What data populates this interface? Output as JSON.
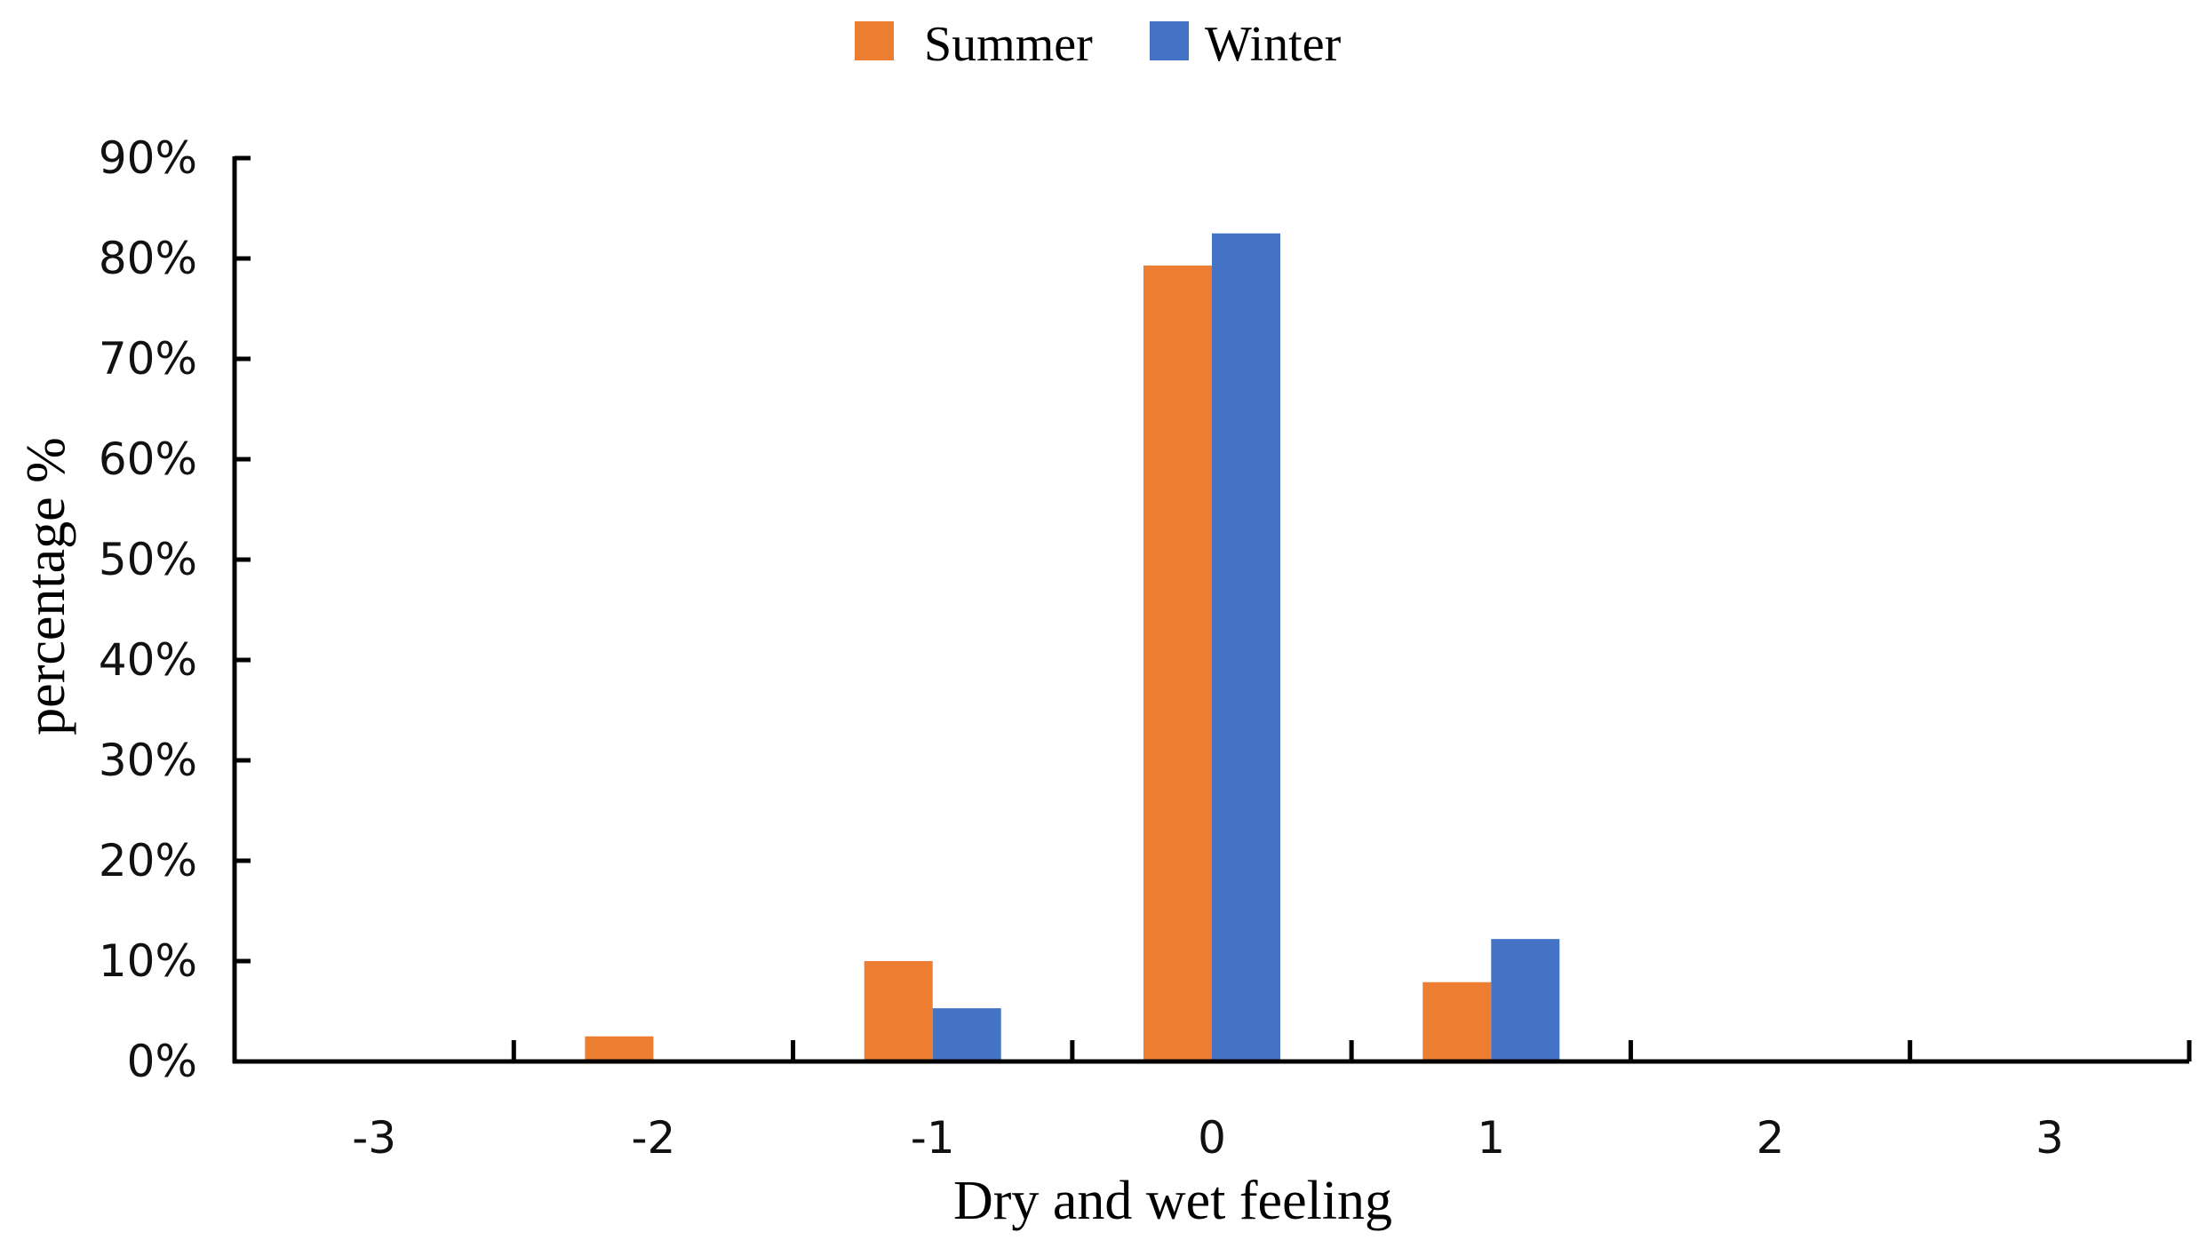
{
  "chart_data": {
    "type": "bar",
    "title": "",
    "xlabel": "Dry and wet feeling",
    "ylabel": "percentage %",
    "categories": [
      "-3",
      "-2",
      "-1",
      "0",
      "1",
      "2",
      "3"
    ],
    "series": [
      {
        "name": "Summer",
        "color": "#ED7D31",
        "values": [
          0,
          2.5,
          10,
          79.3,
          7.9,
          0,
          0
        ]
      },
      {
        "name": "Winter",
        "color": "#4472C4",
        "values": [
          0,
          0,
          5.3,
          82.5,
          12.2,
          0,
          0
        ]
      }
    ],
    "ylim": [
      0,
      90
    ],
    "yticks": [
      0,
      10,
      20,
      30,
      40,
      50,
      60,
      70,
      80,
      90
    ],
    "ytick_labels": [
      "0%",
      "10%",
      "20%",
      "30%",
      "40%",
      "50%",
      "60%",
      "70%",
      "80%",
      "90%"
    ],
    "grid": false,
    "legend_position": "top-center"
  }
}
